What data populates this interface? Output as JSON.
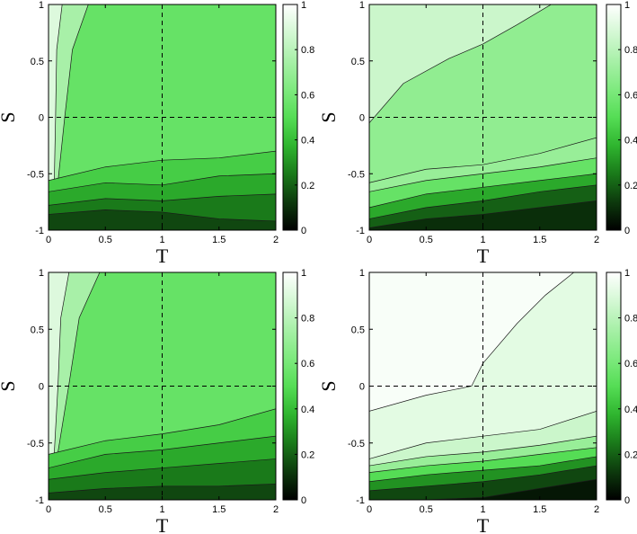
{
  "figure": {
    "layout": "2x2 grid of contour plots with colorbars"
  },
  "colors": {
    "colormap": [
      "#000000",
      "#0d3a0d",
      "#1a7a1a",
      "#2fb52f",
      "#55dd55",
      "#7fea7f",
      "#a8f0a8",
      "#d4f8d4",
      "#ffffff"
    ],
    "contour_line": "#1a1a1a",
    "reference_line": "#000000"
  },
  "chart_data": [
    {
      "type": "heatmap",
      "panel": "top-left",
      "title": "",
      "xlabel": "T",
      "ylabel": "S",
      "xlim": [
        0,
        2
      ],
      "ylim": [
        -1,
        1
      ],
      "x_ticks": [
        "0",
        "0.5",
        "1",
        "1.5",
        "2"
      ],
      "y_ticks": [
        "-1",
        "-0.5",
        "0",
        "0.5",
        "1"
      ],
      "reference_lines": {
        "x": 1,
        "y": 0
      },
      "colorbar": {
        "range": [
          0,
          1
        ],
        "ticks": [
          "0",
          "0.2",
          "0.4",
          "0.6",
          "0.8",
          "1"
        ]
      },
      "levels": [
        0.2,
        0.3,
        0.4,
        0.5,
        0.6,
        0.7,
        0.8,
        0.9
      ],
      "regions": [
        {
          "level": 0.15,
          "boundary": [
            [
              0,
              -0.86
            ],
            [
              0.5,
              -0.82
            ],
            [
              1.0,
              -0.84
            ],
            [
              1.5,
              -0.9
            ],
            [
              2,
              -0.92
            ]
          ]
        },
        {
          "level": 0.25,
          "boundary": [
            [
              0,
              -0.78
            ],
            [
              0.5,
              -0.72
            ],
            [
              1.0,
              -0.74
            ],
            [
              1.5,
              -0.7
            ],
            [
              2,
              -0.68
            ]
          ]
        },
        {
          "level": 0.35,
          "boundary": [
            [
              0,
              -0.66
            ],
            [
              0.5,
              -0.58
            ],
            [
              1.0,
              -0.6
            ],
            [
              1.5,
              -0.52
            ],
            [
              2,
              -0.5
            ]
          ]
        },
        {
          "level": 0.45,
          "boundary": [
            [
              0,
              -0.56
            ],
            [
              0.5,
              -0.44
            ],
            [
              1.0,
              -0.38
            ],
            [
              1.5,
              -0.36
            ],
            [
              2,
              -0.3
            ]
          ]
        }
      ],
      "background_value": 0.55,
      "left_band": [
        {
          "level": 0.75,
          "x_at_top": 0.35,
          "x_at_bottom": 0.05
        },
        {
          "level": 0.9,
          "x_at_top": 0.12,
          "x_at_bottom": 0.02
        }
      ]
    },
    {
      "type": "heatmap",
      "panel": "top-right",
      "title": "",
      "xlabel": "T",
      "ylabel": "S",
      "xlim": [
        0,
        2
      ],
      "ylim": [
        -1,
        1
      ],
      "x_ticks": [
        "0",
        "0.5",
        "1",
        "1.5",
        "2"
      ],
      "y_ticks": [
        "-1",
        "-0.5",
        "0",
        "0.5",
        "1"
      ],
      "reference_lines": {
        "x": 1,
        "y": 0
      },
      "colorbar": {
        "range": [
          0,
          1
        ],
        "ticks": [
          "0",
          "0.2",
          "0.4",
          "0.6",
          "0.8",
          "1"
        ]
      },
      "levels": [
        0.2,
        0.3,
        0.4,
        0.5,
        0.6,
        0.7,
        0.8,
        0.9
      ],
      "regions": [
        {
          "level": 0.1,
          "boundary": [
            [
              0,
              -0.98
            ],
            [
              0.5,
              -0.9
            ],
            [
              1.0,
              -0.86
            ],
            [
              1.5,
              -0.8
            ],
            [
              2,
              -0.74
            ]
          ]
        },
        {
          "level": 0.2,
          "boundary": [
            [
              0,
              -0.9
            ],
            [
              0.5,
              -0.8
            ],
            [
              1.0,
              -0.74
            ],
            [
              1.5,
              -0.66
            ],
            [
              2,
              -0.6
            ]
          ]
        },
        {
          "level": 0.35,
          "boundary": [
            [
              0,
              -0.8
            ],
            [
              0.5,
              -0.68
            ],
            [
              1.0,
              -0.62
            ],
            [
              1.5,
              -0.56
            ],
            [
              2,
              -0.5
            ]
          ]
        },
        {
          "level": 0.55,
          "boundary": [
            [
              0,
              -0.66
            ],
            [
              0.5,
              -0.56
            ],
            [
              1.0,
              -0.5
            ],
            [
              1.5,
              -0.44
            ],
            [
              2,
              -0.36
            ]
          ]
        },
        {
          "level": 0.7,
          "boundary": [
            [
              0,
              -0.58
            ],
            [
              0.5,
              -0.46
            ],
            [
              1.0,
              -0.42
            ],
            [
              1.5,
              -0.32
            ],
            [
              2,
              -0.18
            ]
          ]
        }
      ],
      "background_value": 0.68,
      "upper_band": {
        "level": 0.85,
        "boundary": [
          [
            0,
            -0.05
          ],
          [
            0.3,
            0.3
          ],
          [
            0.7,
            0.52
          ],
          [
            1.0,
            0.65
          ],
          [
            1.3,
            0.82
          ],
          [
            1.6,
            1.0
          ]
        ]
      }
    },
    {
      "type": "heatmap",
      "panel": "bottom-left",
      "title": "",
      "xlabel": "T",
      "ylabel": "S",
      "xlim": [
        0,
        2
      ],
      "ylim": [
        -1,
        1
      ],
      "x_ticks": [
        "0",
        "0.5",
        "1",
        "1.5",
        "2"
      ],
      "y_ticks": [
        "-1",
        "-0.5",
        "0",
        "0.5",
        "1"
      ],
      "reference_lines": {
        "x": 1,
        "y": 0
      },
      "colorbar": {
        "range": [
          0,
          1
        ],
        "ticks": [
          "0",
          "0.2",
          "0.4",
          "0.6",
          "0.8",
          "1"
        ]
      },
      "levels": [
        0.2,
        0.3,
        0.4,
        0.5,
        0.6,
        0.7,
        0.8,
        0.9
      ],
      "regions": [
        {
          "level": 0.15,
          "boundary": [
            [
              0,
              -0.94
            ],
            [
              0.5,
              -0.9
            ],
            [
              1.0,
              -0.88
            ],
            [
              1.5,
              -0.88
            ],
            [
              2,
              -0.86
            ]
          ]
        },
        {
          "level": 0.25,
          "boundary": [
            [
              0,
              -0.82
            ],
            [
              0.5,
              -0.76
            ],
            [
              1.0,
              -0.72
            ],
            [
              1.5,
              -0.68
            ],
            [
              2,
              -0.64
            ]
          ]
        },
        {
          "level": 0.35,
          "boundary": [
            [
              0,
              -0.72
            ],
            [
              0.5,
              -0.6
            ],
            [
              1.0,
              -0.56
            ],
            [
              1.5,
              -0.5
            ],
            [
              2,
              -0.44
            ]
          ]
        },
        {
          "level": 0.45,
          "boundary": [
            [
              0,
              -0.6
            ],
            [
              0.5,
              -0.48
            ],
            [
              1.0,
              -0.42
            ],
            [
              1.5,
              -0.34
            ],
            [
              2,
              -0.2
            ]
          ]
        }
      ],
      "background_value": 0.55,
      "left_band": [
        {
          "level": 0.75,
          "x_at_top": 0.45,
          "x_at_bottom": 0.05
        },
        {
          "level": 0.9,
          "x_at_top": 0.18,
          "x_at_bottom": 0.02
        }
      ]
    },
    {
      "type": "heatmap",
      "panel": "bottom-right",
      "title": "",
      "xlabel": "T",
      "ylabel": "S",
      "xlim": [
        0,
        2
      ],
      "ylim": [
        -1,
        1
      ],
      "x_ticks": [
        "0",
        "0.5",
        "1",
        "1.5",
        "2"
      ],
      "y_ticks": [
        "-1",
        "-0.5",
        "0",
        "0.5",
        "1"
      ],
      "reference_lines": {
        "x": 1,
        "y": 0
      },
      "colorbar": {
        "range": [
          0,
          1
        ],
        "ticks": [
          "0",
          "0.2",
          "0.4",
          "0.6",
          "0.8",
          "1"
        ]
      },
      "levels": [
        0.1,
        0.2,
        0.3,
        0.4,
        0.5,
        0.6,
        0.7,
        0.8,
        0.9
      ],
      "regions": [
        {
          "level": 0.05,
          "boundary": [
            [
              0,
              -1.0
            ],
            [
              0.5,
              -1.0
            ],
            [
              1.0,
              -0.98
            ],
            [
              1.5,
              -0.9
            ],
            [
              2,
              -0.82
            ]
          ]
        },
        {
          "level": 0.15,
          "boundary": [
            [
              0,
              -0.92
            ],
            [
              0.5,
              -0.88
            ],
            [
              1.0,
              -0.84
            ],
            [
              1.5,
              -0.78
            ],
            [
              2,
              -0.7
            ]
          ]
        },
        {
          "level": 0.3,
          "boundary": [
            [
              0,
              -0.84
            ],
            [
              0.5,
              -0.78
            ],
            [
              1.0,
              -0.74
            ],
            [
              1.5,
              -0.7
            ],
            [
              2,
              -0.62
            ]
          ]
        },
        {
          "level": 0.5,
          "boundary": [
            [
              0,
              -0.76
            ],
            [
              0.5,
              -0.7
            ],
            [
              1.0,
              -0.66
            ],
            [
              1.5,
              -0.6
            ],
            [
              2,
              -0.54
            ]
          ]
        },
        {
          "level": 0.7,
          "boundary": [
            [
              0,
              -0.7
            ],
            [
              0.5,
              -0.62
            ],
            [
              1.0,
              -0.58
            ],
            [
              1.5,
              -0.52
            ],
            [
              2,
              -0.44
            ]
          ]
        },
        {
          "level": 0.85,
          "boundary": [
            [
              0,
              -0.64
            ],
            [
              0.5,
              -0.5
            ],
            [
              1.0,
              -0.44
            ],
            [
              1.5,
              -0.38
            ],
            [
              2,
              -0.22
            ]
          ]
        }
      ],
      "background_value": 0.92,
      "upper_band": {
        "level": 0.98,
        "boundary": [
          [
            0,
            -0.22
          ],
          [
            0.5,
            -0.08
          ],
          [
            0.9,
            0.0
          ],
          [
            1.0,
            0.2
          ],
          [
            1.3,
            0.55
          ],
          [
            1.55,
            0.8
          ],
          [
            1.8,
            1.0
          ]
        ]
      }
    }
  ]
}
